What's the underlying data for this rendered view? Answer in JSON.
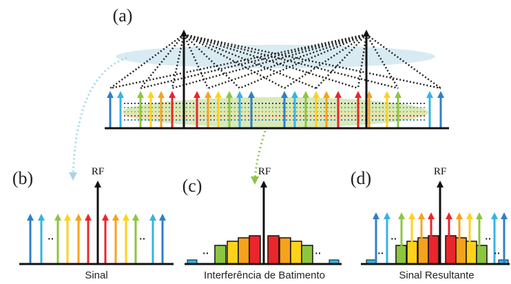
{
  "panels": {
    "a": {
      "label": "(a)"
    },
    "b": {
      "label": "(b)",
      "rf_label": "RF",
      "caption": "Sinal",
      "ellipsis": "··"
    },
    "c": {
      "label": "(c)",
      "rf_label": "RF",
      "caption": "Interferência de Batimento",
      "ellipsis": "··"
    },
    "d": {
      "label": "(d)",
      "rf_label": "RF",
      "caption": "Sinal Resultante",
      "ellipsis": "··"
    }
  },
  "colors": {
    "blue": "#2f7fc8",
    "cyan": "#35b3e6",
    "green": "#8cc63f",
    "yellow": "#ffd21a",
    "orange": "#f7a21b",
    "red": "#e8262b",
    "black": "#111111",
    "ellipse": "#cfe6ef",
    "green_band": "#cfe3a6",
    "dotted_arrow_left": "#a9d4e6",
    "dotted_arrow_center": "#8cc63f"
  }
}
